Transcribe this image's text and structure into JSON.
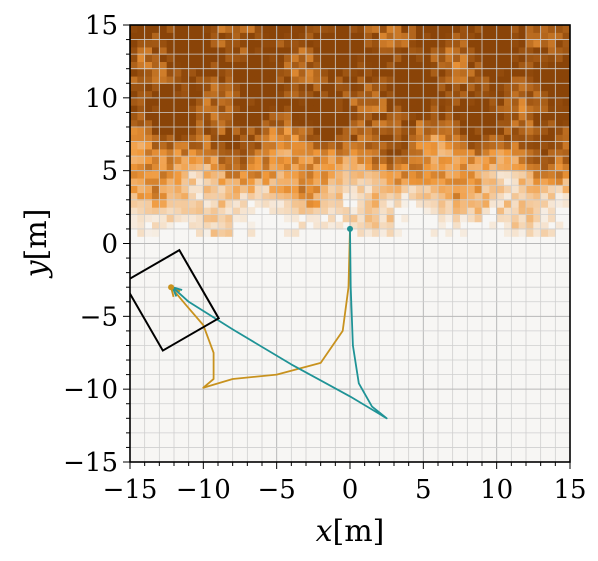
{
  "chart_data": {
    "type": "heatmap",
    "title": "",
    "xlabel": "x",
    "ylabel": "y",
    "xunit": "[m]",
    "yunit": "[m]",
    "xlim": [
      -15,
      15
    ],
    "ylim": [
      -15,
      15
    ],
    "xticks": [
      -15,
      -10,
      -5,
      0,
      5,
      10,
      15
    ],
    "yticks": [
      -15,
      -10,
      -5,
      0,
      5,
      10,
      15
    ],
    "xtick_labels": [
      "−15",
      "−10",
      "−5",
      "0",
      "5",
      "10",
      "15"
    ],
    "ytick_labels": [
      "−15",
      "−10",
      "−5",
      "0",
      "5",
      "10",
      "15"
    ],
    "grid": true,
    "grid_spacing": 1,
    "heatmap": {
      "colormap": "white-to-orange-brown",
      "low_color": "#f7f6f4",
      "high_color": "#8a4408",
      "high_region_y_from": 1
    },
    "series": [
      {
        "color": "#c8921e",
        "points": [
          [
            0,
            1
          ],
          [
            -0.1,
            -3
          ],
          [
            -0.5,
            -6
          ],
          [
            -2,
            -8.2
          ],
          [
            -5,
            -9
          ],
          [
            -8,
            -9.3
          ],
          [
            -10,
            -9.9
          ],
          [
            -9.3,
            -9.3
          ],
          [
            -9.3,
            -7.5
          ],
          [
            -10,
            -5.6
          ],
          [
            -11.2,
            -4.2
          ],
          [
            -12.2,
            -3
          ]
        ]
      },
      {
        "color": "#1f9396",
        "points": [
          [
            0,
            1
          ],
          [
            0.05,
            -3
          ],
          [
            0.2,
            -7
          ],
          [
            0.6,
            -9.6
          ],
          [
            1.5,
            -11.2
          ],
          [
            2.5,
            -12
          ],
          [
            0,
            -10.5
          ],
          [
            -4,
            -8.3
          ],
          [
            -8,
            -5.9
          ],
          [
            -11,
            -4
          ],
          [
            -12.1,
            -3
          ]
        ]
      }
    ],
    "markers": [
      {
        "shape": "dot",
        "x": 0,
        "y": 1,
        "color": "#1f9396"
      },
      {
        "shape": "dot",
        "x": -12.2,
        "y": -3,
        "color": "#c8921e"
      }
    ],
    "box": {
      "center": [
        -12.2,
        -3.9
      ],
      "width": 4.4,
      "height": 5.4,
      "angle_deg": -30,
      "color": "#000000"
    }
  }
}
